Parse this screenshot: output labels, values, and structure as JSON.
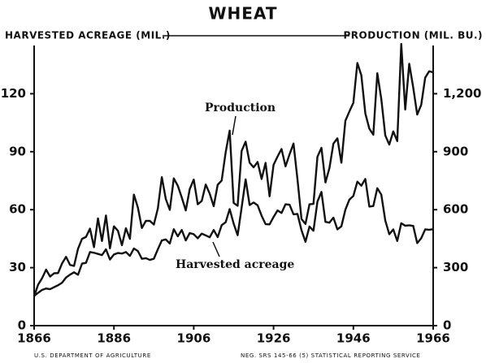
{
  "chart_data": {
    "type": "line",
    "title": "WHEAT",
    "y_label": "HARVESTED ACREAGE (MIL.)",
    "y2_label": "PRODUCTION (MIL. BU.)",
    "footer_left": "U.S. DEPARTMENT OF AGRICULTURE",
    "footer_right": "NEG. SRS 145-66 (5)  STATISTICAL REPORTING SERVICE",
    "x": [
      1866,
      1867,
      1868,
      1869,
      1870,
      1871,
      1872,
      1873,
      1874,
      1875,
      1876,
      1877,
      1878,
      1879,
      1880,
      1881,
      1882,
      1883,
      1884,
      1885,
      1886,
      1887,
      1888,
      1889,
      1890,
      1891,
      1892,
      1893,
      1894,
      1895,
      1896,
      1897,
      1898,
      1899,
      1900,
      1901,
      1902,
      1903,
      1904,
      1905,
      1906,
      1907,
      1908,
      1909,
      1910,
      1911,
      1912,
      1913,
      1914,
      1915,
      1916,
      1917,
      1918,
      1919,
      1920,
      1921,
      1922,
      1923,
      1924,
      1925,
      1926,
      1927,
      1928,
      1929,
      1930,
      1931,
      1932,
      1933,
      1934,
      1935,
      1936,
      1937,
      1938,
      1939,
      1940,
      1941,
      1942,
      1943,
      1944,
      1945,
      1946,
      1947,
      1948,
      1949,
      1950,
      1951,
      1952,
      1953,
      1954,
      1955,
      1956,
      1957,
      1958,
      1959,
      1960,
      1961,
      1962,
      1963,
      1964,
      1965,
      1966
    ],
    "series": [
      {
        "name": "Harvested acreage",
        "color": "#111111",
        "axis": "y",
        "values": [
          15.4,
          17.0,
          18.5,
          19.2,
          18.9,
          19.9,
          20.9,
          22.2,
          24.9,
          26.4,
          27.6,
          26.3,
          32.1,
          32.5,
          38.1,
          37.7,
          37.1,
          36.5,
          39.5,
          34.2,
          36.8,
          37.6,
          37.3,
          38.1,
          36.1,
          39.9,
          38.6,
          34.6,
          34.9,
          34.0,
          34.6,
          39.5,
          44.1,
          44.6,
          42.5,
          49.9,
          46.2,
          49.5,
          44.1,
          47.9,
          47.3,
          45.2,
          47.6,
          46.7,
          45.7,
          49.5,
          45.8,
          52.0,
          53.5,
          60.3,
          52.8,
          46.8,
          61.1,
          75.7,
          62.4,
          63.7,
          62.3,
          56.9,
          52.5,
          52.4,
          56.2,
          59.6,
          58.3,
          62.8,
          62.6,
          57.6,
          57.8,
          49.4,
          43.4,
          51.3,
          49.1,
          64.2,
          69.2,
          53.7,
          53.3,
          55.9,
          49.8,
          51.4,
          60.0,
          65.2,
          67.1,
          74.5,
          72.4,
          75.9,
          61.6,
          61.9,
          71.1,
          67.8,
          54.4,
          47.3,
          49.8,
          43.8,
          53.0,
          51.7,
          51.9,
          51.6,
          42.7,
          45.2,
          49.8,
          49.6,
          49.9
        ]
      },
      {
        "name": "Production",
        "color": "#111111",
        "axis": "y2",
        "values": [
          152,
          212,
          246,
          290,
          254,
          271,
          272,
          322,
          356,
          314,
          309,
          398,
          449,
          459,
          502,
          406,
          555,
          438,
          570,
          400,
          514,
          491,
          416,
          504,
          449,
          678,
          611,
          505,
          542,
          542,
          523,
          606,
          768,
          655,
          599,
          762,
          724,
          663,
          596,
          707,
          756,
          628,
          645,
          730,
          683,
          618,
          729,
          751,
          897,
          1009,
          635,
          620,
          904,
          952,
          843,
          819,
          847,
          759,
          842,
          669,
          832,
          875,
          914,
          824,
          886,
          942,
          756,
          552,
          526,
          628,
          630,
          874,
          920,
          741,
          815,
          942,
          969,
          843,
          1060,
          1108,
          1153,
          1359,
          1295,
          1098,
          1019,
          988,
          1306,
          1173,
          984,
          937,
          1005,
          955,
          1457,
          1118,
          1355,
          1232,
          1092,
          1142,
          1283,
          1316,
          1311
        ]
      }
    ],
    "xlim": [
      1866,
      1966
    ],
    "xticks": [
      1866,
      1886,
      1906,
      1926,
      1946,
      1966
    ],
    "ylim": [
      0,
      150
    ],
    "yticks": [
      0,
      30,
      60,
      90,
      120
    ],
    "y2lim": [
      0,
      1500
    ],
    "y2ticks": [
      0,
      300,
      600,
      900,
      {
        "value": 1200,
        "label": "1,200"
      }
    ],
    "grid": false
  }
}
